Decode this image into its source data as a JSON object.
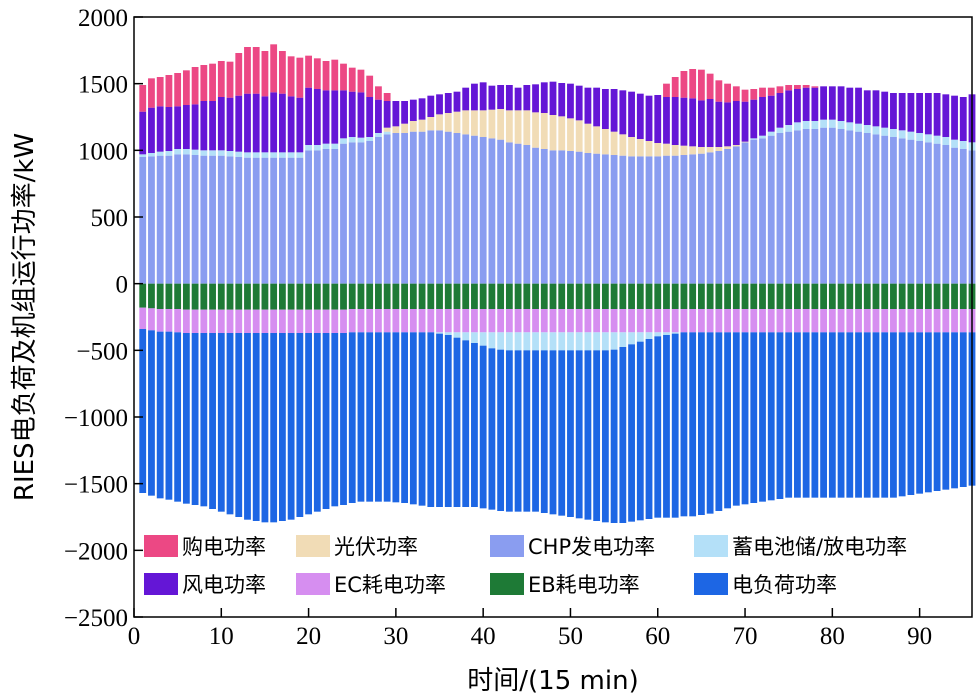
{
  "chart_data": {
    "type": "bar",
    "stacked": true,
    "title": "",
    "xlabel": "时间/(15 min)",
    "ylabel": "RIES电负荷及机组运行功率/kW",
    "xlim": [
      0,
      96
    ],
    "ylim": [
      -2500,
      2000
    ],
    "xticks": [
      0,
      10,
      20,
      30,
      40,
      50,
      60,
      70,
      80,
      90
    ],
    "yticks": [
      -2500,
      -2000,
      -1500,
      -1000,
      -500,
      0,
      500,
      1000,
      1500,
      2000
    ],
    "xtick_labels": [
      "0",
      "10",
      "20",
      "30",
      "40",
      "50",
      "60",
      "70",
      "80",
      "90"
    ],
    "ytick_labels": [
      "−2500",
      "−2000",
      "−1500",
      "−1000",
      "−500",
      "0",
      "500",
      "1000",
      "1500",
      "2000"
    ],
    "grid": false,
    "legend_position": "bottom-left",
    "x": [
      1,
      2,
      3,
      4,
      5,
      6,
      7,
      8,
      9,
      10,
      11,
      12,
      13,
      14,
      15,
      16,
      17,
      18,
      19,
      20,
      21,
      22,
      23,
      24,
      25,
      26,
      27,
      28,
      29,
      30,
      31,
      32,
      33,
      34,
      35,
      36,
      37,
      38,
      39,
      40,
      41,
      42,
      43,
      44,
      45,
      46,
      47,
      48,
      49,
      50,
      51,
      52,
      53,
      54,
      55,
      56,
      57,
      58,
      59,
      60,
      61,
      62,
      63,
      64,
      65,
      66,
      67,
      68,
      69,
      70,
      71,
      72,
      73,
      74,
      75,
      76,
      77,
      78,
      79,
      80,
      81,
      82,
      83,
      84,
      85,
      86,
      87,
      88,
      89,
      90,
      91,
      92,
      93,
      94,
      95,
      96
    ],
    "series": [
      {
        "name": "CHP发电功率",
        "color": "#8a9df0",
        "values": [
          950,
          955,
          960,
          960,
          970,
          970,
          965,
          960,
          960,
          960,
          955,
          950,
          945,
          945,
          945,
          945,
          945,
          945,
          945,
          1000,
          1000,
          1010,
          1010,
          1050,
          1060,
          1060,
          1070,
          1100,
          1120,
          1130,
          1130,
          1140,
          1140,
          1150,
          1150,
          1140,
          1130,
          1120,
          1110,
          1100,
          1090,
          1080,
          1060,
          1050,
          1040,
          1020,
          1010,
          1000,
          1000,
          995,
          990,
          980,
          975,
          970,
          965,
          960,
          955,
          955,
          955,
          955,
          960,
          960,
          965,
          970,
          975,
          985,
          995,
          1010,
          1030,
          1060,
          1080,
          1090,
          1110,
          1130,
          1140,
          1150,
          1160,
          1160,
          1170,
          1170,
          1160,
          1150,
          1140,
          1130,
          1120,
          1110,
          1100,
          1090,
          1080,
          1070,
          1060,
          1050,
          1040,
          1020,
          1010,
          1000
        ]
      },
      {
        "name": "蓄电池储/放电功率",
        "color": "#b4e0f8",
        "values": [
          20,
          25,
          30,
          35,
          40,
          40,
          40,
          40,
          40,
          40,
          40,
          40,
          40,
          40,
          40,
          40,
          40,
          40,
          40,
          40,
          40,
          40,
          40,
          40,
          40,
          35,
          30,
          30,
          20,
          0,
          0,
          0,
          0,
          0,
          0,
          0,
          0,
          0,
          0,
          0,
          0,
          0,
          0,
          0,
          0,
          0,
          0,
          0,
          0,
          0,
          0,
          0,
          0,
          0,
          0,
          0,
          0,
          0,
          0,
          0,
          0,
          0,
          0,
          0,
          0,
          0,
          0,
          0,
          0,
          0,
          10,
          20,
          30,
          40,
          50,
          60,
          60,
          60,
          60,
          60,
          60,
          60,
          60,
          60,
          60,
          60,
          60,
          60,
          60,
          60,
          60,
          60,
          60,
          60,
          60,
          60
        ]
      },
      {
        "name": "光伏功率",
        "color": "#f1dcb6",
        "values": [
          0,
          0,
          0,
          0,
          0,
          0,
          0,
          0,
          0,
          0,
          0,
          0,
          0,
          0,
          0,
          0,
          0,
          0,
          0,
          0,
          0,
          0,
          0,
          0,
          0,
          0,
          0,
          0,
          30,
          50,
          70,
          80,
          90,
          100,
          120,
          140,
          160,
          180,
          190,
          200,
          215,
          230,
          240,
          250,
          260,
          265,
          270,
          265,
          255,
          245,
          235,
          220,
          205,
          190,
          175,
          160,
          145,
          130,
          115,
          100,
          90,
          80,
          70,
          60,
          50,
          40,
          30,
          20,
          10,
          5,
          0,
          0,
          0,
          0,
          0,
          0,
          0,
          0,
          0,
          0,
          0,
          0,
          0,
          0,
          0,
          0,
          0,
          0,
          0,
          0,
          0,
          0,
          0,
          0,
          0,
          0
        ]
      },
      {
        "name": "风电功率",
        "color": "#6416d6",
        "values": [
          320,
          340,
          340,
          330,
          320,
          330,
          340,
          370,
          370,
          400,
          400,
          420,
          440,
          440,
          420,
          450,
          440,
          420,
          410,
          430,
          420,
          400,
          400,
          360,
          340,
          340,
          300,
          250,
          200,
          190,
          170,
          160,
          160,
          160,
          150,
          150,
          150,
          170,
          200,
          210,
          180,
          180,
          190,
          170,
          190,
          210,
          230,
          250,
          250,
          260,
          260,
          270,
          290,
          300,
          320,
          330,
          340,
          340,
          340,
          360,
          350,
          360,
          360,
          360,
          350,
          360,
          340,
          330,
          330,
          300,
          290,
          290,
          270,
          260,
          260,
          250,
          250,
          250,
          250,
          250,
          260,
          260,
          270,
          260,
          270,
          270,
          270,
          280,
          290,
          300,
          310,
          320,
          320,
          330,
          330,
          360
        ]
      },
      {
        "name": "购电功率",
        "color": "#ec4884",
        "values": [
          200,
          220,
          220,
          240,
          250,
          260,
          280,
          270,
          280,
          270,
          270,
          320,
          350,
          350,
          340,
          360,
          320,
          300,
          300,
          240,
          230,
          220,
          230,
          200,
          180,
          170,
          160,
          100,
          60,
          0,
          0,
          0,
          0,
          0,
          0,
          0,
          0,
          0,
          0,
          0,
          0,
          0,
          0,
          0,
          0,
          0,
          0,
          0,
          0,
          0,
          0,
          0,
          0,
          0,
          0,
          0,
          0,
          0,
          0,
          0,
          100,
          150,
          200,
          220,
          230,
          190,
          160,
          140,
          110,
          90,
          80,
          70,
          60,
          50,
          40,
          30,
          20,
          10,
          0,
          0,
          0,
          0,
          0,
          0,
          0,
          0,
          0,
          0,
          0,
          0,
          0,
          0,
          0,
          0,
          0,
          0
        ]
      },
      {
        "name": "EB耗电功率",
        "color": "#1e7a36",
        "values": [
          -180,
          -185,
          -190,
          -190,
          -190,
          -195,
          -195,
          -195,
          -195,
          -195,
          -195,
          -195,
          -195,
          -195,
          -195,
          -195,
          -195,
          -195,
          -195,
          -195,
          -195,
          -195,
          -195,
          -195,
          -190,
          -190,
          -190,
          -190,
          -190,
          -190,
          -190,
          -190,
          -190,
          -190,
          -190,
          -190,
          -190,
          -190,
          -190,
          -190,
          -190,
          -190,
          -190,
          -190,
          -190,
          -190,
          -190,
          -190,
          -190,
          -190,
          -190,
          -190,
          -190,
          -190,
          -190,
          -190,
          -190,
          -190,
          -190,
          -190,
          -190,
          -190,
          -190,
          -190,
          -190,
          -190,
          -190,
          -190,
          -190,
          -190,
          -190,
          -190,
          -190,
          -190,
          -190,
          -190,
          -190,
          -190,
          -190,
          -190,
          -190,
          -190,
          -190,
          -190,
          -190,
          -190,
          -190,
          -190,
          -190,
          -190,
          -190,
          -190,
          -190,
          -190,
          -190,
          -190
        ]
      },
      {
        "name": "EC耗电功率",
        "color": "#d68ef0",
        "values": [
          -160,
          -165,
          -170,
          -170,
          -175,
          -175,
          -175,
          -175,
          -175,
          -175,
          -175,
          -175,
          -175,
          -175,
          -175,
          -175,
          -175,
          -175,
          -175,
          -175,
          -175,
          -175,
          -175,
          -175,
          -175,
          -175,
          -175,
          -175,
          -175,
          -175,
          -175,
          -175,
          -175,
          -175,
          -175,
          -175,
          -175,
          -175,
          -175,
          -175,
          -175,
          -175,
          -175,
          -175,
          -175,
          -175,
          -175,
          -175,
          -175,
          -175,
          -175,
          -175,
          -175,
          -175,
          -175,
          -175,
          -175,
          -175,
          -175,
          -175,
          -175,
          -175,
          -175,
          -175,
          -175,
          -175,
          -175,
          -175,
          -175,
          -175,
          -175,
          -175,
          -175,
          -175,
          -175,
          -175,
          -175,
          -175,
          -175,
          -175,
          -175,
          -175,
          -175,
          -175,
          -175,
          -175,
          -175,
          -175,
          -175,
          -175,
          -175,
          -175,
          -175,
          -175,
          -175,
          -175
        ]
      },
      {
        "name": "蓄电池储/放电功率",
        "color": "#b4e0f8",
        "values": [
          0,
          0,
          0,
          0,
          0,
          0,
          0,
          0,
          0,
          0,
          0,
          0,
          0,
          0,
          0,
          0,
          0,
          0,
          0,
          0,
          0,
          0,
          0,
          0,
          0,
          0,
          0,
          0,
          0,
          0,
          0,
          0,
          0,
          0,
          -10,
          -20,
          -40,
          -60,
          -80,
          -100,
          -120,
          -130,
          -135,
          -135,
          -135,
          -135,
          -135,
          -135,
          -135,
          -135,
          -135,
          -135,
          -135,
          -135,
          -130,
          -110,
          -90,
          -70,
          -50,
          -30,
          -20,
          -10,
          0,
          0,
          0,
          0,
          0,
          0,
          0,
          0,
          0,
          0,
          0,
          0,
          0,
          0,
          0,
          0,
          0,
          0,
          0,
          0,
          0,
          0,
          0,
          0,
          0,
          0,
          0,
          0,
          0,
          0,
          0,
          0,
          0,
          0
        ]
      },
      {
        "name": "电负荷功率",
        "color": "#1d66e4",
        "values": [
          -1230,
          -1240,
          -1250,
          -1260,
          -1270,
          -1280,
          -1290,
          -1300,
          -1320,
          -1340,
          -1360,
          -1380,
          -1400,
          -1410,
          -1420,
          -1420,
          -1410,
          -1400,
          -1380,
          -1360,
          -1340,
          -1320,
          -1300,
          -1290,
          -1280,
          -1270,
          -1270,
          -1270,
          -1270,
          -1275,
          -1280,
          -1290,
          -1300,
          -1310,
          -1300,
          -1290,
          -1270,
          -1250,
          -1230,
          -1220,
          -1210,
          -1210,
          -1210,
          -1210,
          -1210,
          -1210,
          -1220,
          -1230,
          -1240,
          -1250,
          -1260,
          -1270,
          -1280,
          -1290,
          -1300,
          -1320,
          -1330,
          -1340,
          -1350,
          -1360,
          -1370,
          -1380,
          -1380,
          -1380,
          -1370,
          -1360,
          -1340,
          -1320,
          -1300,
          -1290,
          -1280,
          -1270,
          -1260,
          -1250,
          -1240,
          -1240,
          -1240,
          -1240,
          -1240,
          -1240,
          -1240,
          -1240,
          -1240,
          -1240,
          -1240,
          -1240,
          -1240,
          -1230,
          -1220,
          -1210,
          -1200,
          -1190,
          -1180,
          -1170,
          -1160,
          -1150
        ]
      }
    ],
    "legend": [
      {
        "label": "购电功率",
        "color": "#ec4884"
      },
      {
        "label": "光伏功率",
        "color": "#f1dcb6"
      },
      {
        "label": "CHP发电功率",
        "color": "#8a9df0"
      },
      {
        "label": "蓄电池储/放电功率",
        "color": "#b4e0f8"
      },
      {
        "label": "风电功率",
        "color": "#6416d6"
      },
      {
        "label": "EC耗电功率",
        "color": "#d68ef0"
      },
      {
        "label": "EB耗电功率",
        "color": "#1e7a36"
      },
      {
        "label": "电负荷功率",
        "color": "#1d66e4"
      }
    ]
  }
}
